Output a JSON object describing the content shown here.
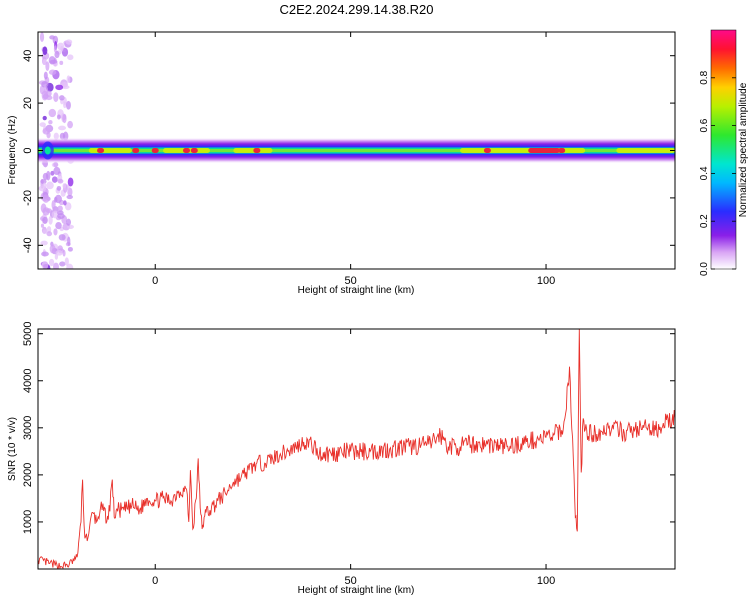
{
  "title": "C2E2.2024.299.14.38.R20",
  "colors": {
    "snr_line": "#e8302a",
    "spectrogram_peak": "#e8243c",
    "frame": "#000000"
  },
  "chart_data": [
    {
      "type": "heatmap",
      "title": "C2E2.2024.299.14.38.R20",
      "xlabel": "Height of straight line (km)",
      "ylabel": "Frequency (Hz)",
      "xlim": [
        -30,
        133
      ],
      "ylim": [
        -50,
        50
      ],
      "x_ticks": [
        "0",
        "50",
        "100"
      ],
      "x_tick_values": [
        0,
        50,
        100
      ],
      "y_ticks": [
        "40",
        "20",
        "0",
        "-20",
        "-40"
      ],
      "y_tick_values": [
        40,
        20,
        0,
        -20,
        -40
      ],
      "colorbar": {
        "label": "Normalized spectral amplitude",
        "range": [
          0.0,
          1.0
        ],
        "ticks": [
          "0.0",
          "0.2",
          "0.4",
          "0.6",
          "0.8"
        ],
        "tick_values": [
          0.0,
          0.2,
          0.4,
          0.6,
          0.8
        ],
        "colormap": "rainbow (white-purple-blue-cyan-green-yellow-red-magenta)"
      },
      "main_band": {
        "center_freq_hz": 0,
        "x_range": [
          -30,
          133
        ],
        "description": "narrow band near 0 Hz with strongest amplitude bursts"
      },
      "hot_spots_x": [
        -14,
        -5,
        0,
        8,
        10,
        26,
        85,
        98,
        101,
        104
      ]
    },
    {
      "type": "line",
      "title": "",
      "xlabel": "Height of straight line (km)",
      "ylabel": "SNR (10 * v/v)",
      "xlim": [
        -30,
        133
      ],
      "ylim": [
        0,
        5100
      ],
      "x_ticks": [
        "0",
        "50",
        "100"
      ],
      "x_tick_values": [
        0,
        50,
        100
      ],
      "y_ticks": [
        "5000",
        "4000",
        "3000",
        "2000",
        "1000"
      ],
      "y_tick_values": [
        5000,
        4000,
        3000,
        2000,
        1000
      ],
      "series": [
        {
          "x": [
            -30,
            -27,
            -24,
            -22,
            -20,
            -19,
            -18.6,
            -18,
            -17,
            -16,
            -15,
            -14,
            -12,
            -11,
            -10.5,
            -10,
            -8,
            -6,
            -4,
            -2,
            0,
            2,
            4,
            6,
            8,
            8.6,
            9,
            9.6,
            10.5,
            11,
            11.5,
            12,
            12.5,
            13,
            14,
            16,
            18,
            20,
            22,
            24,
            26,
            28,
            30,
            32,
            34,
            36,
            38,
            40,
            42,
            45,
            50,
            55,
            60,
            65,
            70,
            73,
            75,
            78,
            80,
            85,
            90,
            95,
            100,
            102,
            104,
            105,
            106,
            107,
            107.5,
            108,
            108.5,
            109,
            109.5,
            110,
            112,
            116,
            120,
            125,
            128,
            130,
            133
          ],
          "y": [
            200,
            120,
            50,
            100,
            250,
            1000,
            1900,
            650,
            750,
            1200,
            1000,
            1300,
            1050,
            1900,
            1100,
            1250,
            1250,
            1350,
            1250,
            1500,
            1450,
            1500,
            1450,
            1650,
            1700,
            1000,
            2100,
            850,
            1500,
            2350,
            1300,
            850,
            1100,
            1200,
            1250,
            1450,
            1600,
            1850,
            1950,
            2100,
            2250,
            2250,
            2350,
            2450,
            2500,
            2600,
            2700,
            2650,
            2450,
            2450,
            2500,
            2500,
            2550,
            2600,
            2650,
            2850,
            2600,
            2600,
            2650,
            2650,
            2600,
            2700,
            2800,
            2850,
            2950,
            3300,
            4300,
            2300,
            1100,
            800,
            5100,
            2050,
            3200,
            2950,
            2850,
            3000,
            2900,
            3000,
            2950,
            3100,
            3200
          ]
        }
      ]
    }
  ]
}
